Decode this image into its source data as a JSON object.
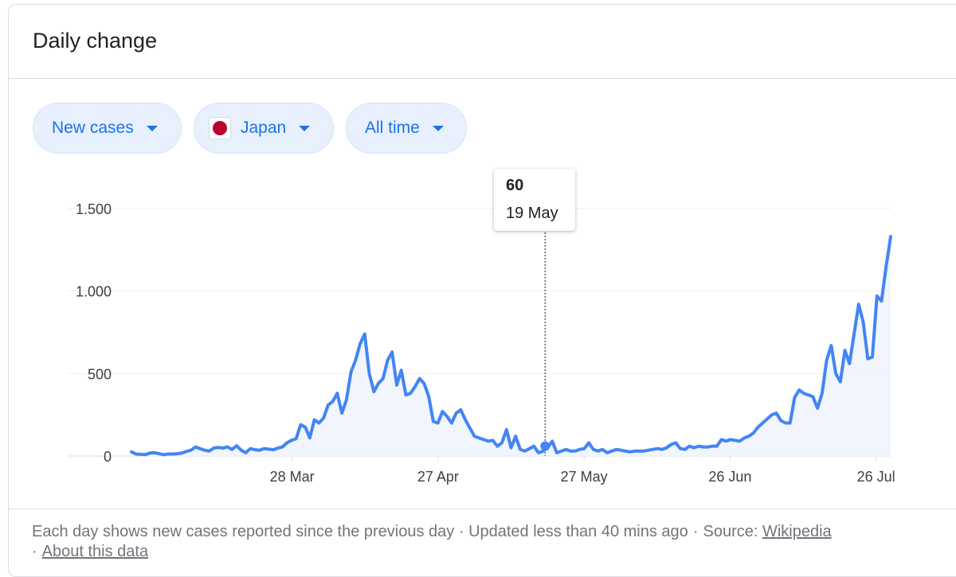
{
  "header": {
    "title": "Daily change"
  },
  "filters": {
    "metric": "New cases",
    "country": "Japan",
    "range": "All time"
  },
  "colors": {
    "line": "#4285f4",
    "fill": "#eef3fd",
    "chip_bg": "#e8f0fe",
    "chip_text": "#1a73e8",
    "flag_red": "#bc002d"
  },
  "tooltip": {
    "value": "60",
    "date": "19 May"
  },
  "footer": {
    "note": "Each day shows new cases reported since the previous day · Updated less than 40 mins ago",
    "source_label": "Source:",
    "source_link": "Wikipedia",
    "about_link": "About this data"
  },
  "chart_data": {
    "type": "area",
    "title": "",
    "xlabel": "",
    "ylabel": "",
    "start_date": "2020-02-24",
    "end_date": "2020-07-29",
    "ylim": [
      0,
      1500
    ],
    "y_ticks": [
      0,
      500,
      1000,
      1500
    ],
    "y_tick_labels": [
      "0",
      "500",
      "1.000",
      "1.500"
    ],
    "x_ticks": [
      "2020-03-28",
      "2020-04-27",
      "2020-05-27",
      "2020-06-26",
      "2020-07-26"
    ],
    "x_tick_labels": [
      "28 Mar",
      "27 Apr",
      "27 May",
      "26 Jun",
      "26 Jul"
    ],
    "highlight": {
      "date": "2020-05-19",
      "value": 60
    },
    "series": [
      {
        "values": [
          25,
          12,
          10,
          8,
          18,
          20,
          15,
          8,
          12,
          12,
          14,
          18,
          28,
          35,
          55,
          45,
          35,
          30,
          48,
          52,
          48,
          55,
          40,
          62,
          35,
          20,
          45,
          38,
          35,
          45,
          42,
          38,
          48,
          55,
          80,
          95,
          105,
          190,
          175,
          110,
          220,
          200,
          230,
          310,
          330,
          380,
          260,
          340,
          510,
          580,
          680,
          740,
          500,
          390,
          440,
          470,
          580,
          630,
          430,
          520,
          370,
          380,
          420,
          470,
          440,
          360,
          210,
          200,
          270,
          240,
          200,
          260,
          280,
          220,
          170,
          120,
          110,
          100,
          90,
          95,
          60,
          80,
          160,
          50,
          120,
          40,
          30,
          45,
          60,
          20,
          30,
          50,
          90,
          20,
          30,
          40,
          30,
          30,
          40,
          45,
          80,
          40,
          30,
          40,
          20,
          30,
          40,
          35,
          30,
          25,
          30,
          30,
          30,
          35,
          40,
          45,
          40,
          50,
          70,
          80,
          45,
          40,
          60,
          50,
          60,
          55,
          55,
          60,
          60,
          100,
          90,
          100,
          95,
          90,
          110,
          120,
          140,
          175,
          200,
          225,
          250,
          260,
          215,
          200,
          200,
          355,
          400,
          380,
          370,
          360,
          290,
          380,
          580,
          670,
          500,
          450,
          640,
          560,
          740,
          920,
          810,
          590,
          600,
          970,
          940,
          1150,
          1330
        ]
      }
    ]
  }
}
